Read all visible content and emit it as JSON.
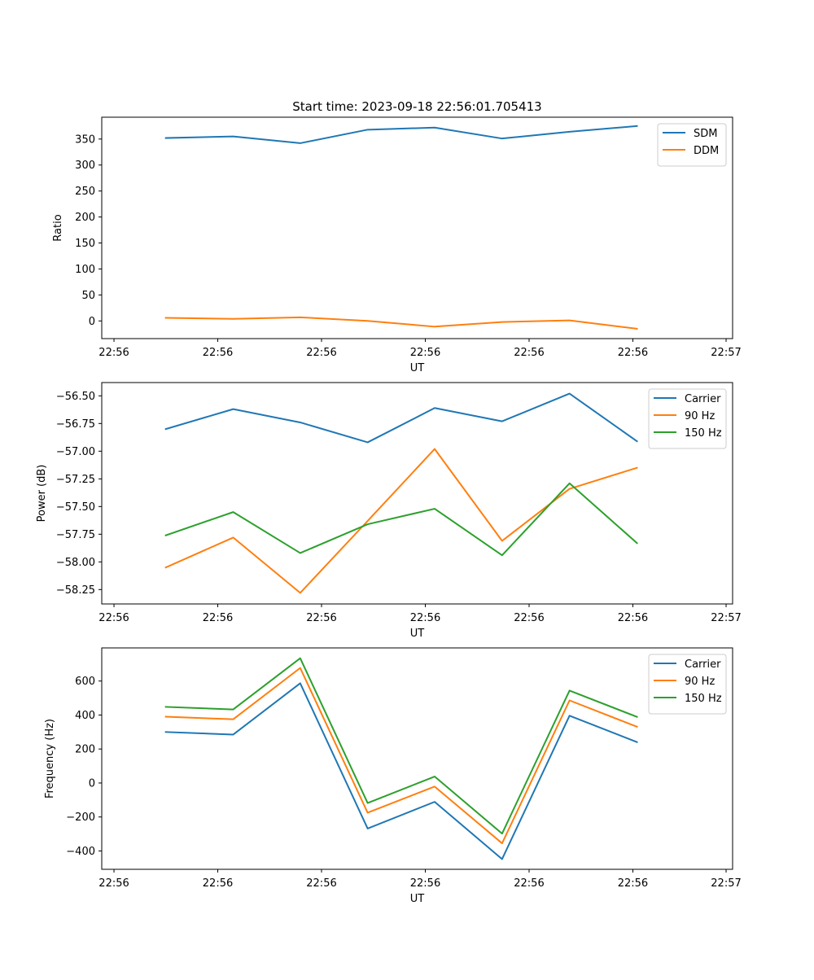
{
  "figure": {
    "title": "Start time: 2023-09-18 22:56:01.705413"
  },
  "chart_data": [
    {
      "type": "line",
      "xlabel": "UT",
      "ylabel": "Ratio",
      "xticks": [
        "22:56",
        "22:56",
        "22:56",
        "22:56",
        "22:56",
        "22:56",
        "22:56"
      ],
      "xticks_last": "22:57",
      "xlim": [
        0,
        1
      ],
      "ylim": [
        -34,
        392
      ],
      "yticks": [
        0,
        50,
        100,
        150,
        200,
        250,
        300,
        350
      ],
      "ytick_labels": [
        "0",
        "50",
        "100",
        "150",
        "200",
        "250",
        "300",
        "350"
      ],
      "legend_position": "top-right",
      "x": [
        0.1015,
        0.2084,
        0.3146,
        0.4215,
        0.5277,
        0.6346,
        0.7415,
        0.8484
      ],
      "series": [
        {
          "name": "SDM",
          "color": "#1f77b4",
          "values": [
            352,
            355,
            342,
            368,
            372,
            351,
            364,
            375
          ]
        },
        {
          "name": "DDM",
          "color": "#ff7f0e",
          "values": [
            6,
            4,
            7,
            0,
            -11,
            -2,
            1,
            -15
          ]
        }
      ]
    },
    {
      "type": "line",
      "xlabel": "UT",
      "ylabel": "Power (dB)",
      "xticks": [
        "22:56",
        "22:56",
        "22:56",
        "22:56",
        "22:56",
        "22:56",
        "22:56"
      ],
      "xticks_last": "22:57",
      "xlim": [
        0,
        1
      ],
      "ylim": [
        -58.38,
        -56.38
      ],
      "yticks": [
        -58.25,
        -58.0,
        -57.75,
        -57.5,
        -57.25,
        -57.0,
        -56.75,
        -56.5
      ],
      "ytick_labels": [
        "−58.25",
        "−58.00",
        "−57.75",
        "−57.50",
        "−57.25",
        "−57.00",
        "−56.75",
        "−56.50"
      ],
      "legend_position": "top-right",
      "x": [
        0.1015,
        0.2084,
        0.3146,
        0.4215,
        0.5277,
        0.6346,
        0.7415,
        0.8484
      ],
      "series": [
        {
          "name": "Carrier",
          "color": "#1f77b4",
          "values": [
            -56.8,
            -56.62,
            -56.74,
            -56.92,
            -56.61,
            -56.73,
            -56.48,
            -56.91
          ]
        },
        {
          "name": "90 Hz",
          "color": "#ff7f0e",
          "values": [
            -58.05,
            -57.78,
            -58.28,
            -57.63,
            -56.98,
            -57.81,
            -57.34,
            -57.15
          ]
        },
        {
          "name": "150 Hz",
          "color": "#2ca02c",
          "values": [
            -57.76,
            -57.55,
            -57.92,
            -57.66,
            -57.52,
            -57.94,
            -57.29,
            -57.83
          ]
        }
      ]
    },
    {
      "type": "line",
      "xlabel": "UT",
      "ylabel": "Frequency (Hz)",
      "xticks": [
        "22:56",
        "22:56",
        "22:56",
        "22:56",
        "22:56",
        "22:56",
        "22:56"
      ],
      "xticks_last": "22:57",
      "xlim": [
        0,
        1
      ],
      "ylim": [
        -508,
        795
      ],
      "yticks": [
        -400,
        -200,
        0,
        200,
        400,
        600
      ],
      "ytick_labels": [
        "−400",
        "−200",
        "0",
        "200",
        "400",
        "600"
      ],
      "legend_position": "top-right",
      "x": [
        0.1015,
        0.2084,
        0.3146,
        0.4215,
        0.5277,
        0.6346,
        0.7415,
        0.8484
      ],
      "series": [
        {
          "name": "Carrier",
          "color": "#1f77b4",
          "values": [
            300,
            285,
            587,
            -268,
            -111,
            -448,
            396,
            241
          ]
        },
        {
          "name": "90 Hz",
          "color": "#ff7f0e",
          "values": [
            390,
            375,
            677,
            -175,
            -21,
            -355,
            486,
            331
          ]
        },
        {
          "name": "150 Hz",
          "color": "#2ca02c",
          "values": [
            448,
            433,
            734,
            -118,
            38,
            -298,
            544,
            389
          ]
        }
      ]
    }
  ]
}
